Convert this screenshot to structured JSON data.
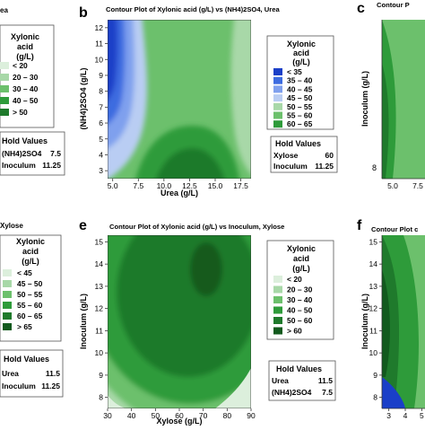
{
  "colors": {
    "lightest": "#dcefdc",
    "light": "#a8d8a8",
    "mid_light": "#6cc06c",
    "mid": "#2e9b3a",
    "dark": "#1f7a2c",
    "darkest": "#125a1e",
    "blue_dark": "#1a3fc8",
    "blue": "#3d6ce0",
    "blue_light": "#7fa0ee",
    "blue_pale": "#b9cdf3"
  },
  "left_top": {
    "title_fragment": "ea",
    "legend_title": [
      "Xylonic",
      "acid",
      "(g/L)"
    ],
    "legend": [
      "< 20",
      "20 – 30",
      "30 – 40",
      "40 – 50",
      "> 50"
    ],
    "hold_title": "Hold Values",
    "hold": [
      {
        "label": "(NH4)2SO4",
        "value": "7.5"
      },
      {
        "label": "Inoculum",
        "value": "11.25"
      }
    ]
  },
  "left_bottom": {
    "title_fragment": "Xylose",
    "legend_title": [
      "Xylonic",
      "acid",
      "(g/L)"
    ],
    "legend": [
      "< 45",
      "45 – 50",
      "50 – 55",
      "55 – 60",
      "60 – 65",
      "> 65"
    ],
    "hold_title": "Hold Values",
    "hold": [
      {
        "label": "Urea",
        "value": "11.5"
      },
      {
        "label": "Inoculum",
        "value": "11.25"
      }
    ]
  },
  "panel_b": {
    "letter": "b",
    "title": "Contour Plot of Xylonic acid (g/L) vs (NH4)2SO4, Urea",
    "xlabel": "Urea (g/L)",
    "ylabel": "(NH4)2SO4 (g/L)",
    "xticks": [
      "5.0",
      "7.5",
      "10.0",
      "12.5",
      "15.0",
      "17.5"
    ],
    "yticks": [
      "3",
      "4",
      "5",
      "6",
      "7",
      "8",
      "9",
      "10",
      "11",
      "12"
    ],
    "legend_title": [
      "Xylonic",
      "acid",
      "(g/L)"
    ],
    "legend": [
      "< 35",
      "35 – 40",
      "40 – 45",
      "45 – 50",
      "50 – 55",
      "55 – 60",
      "60 – 65"
    ],
    "hold_title": "Hold Values",
    "hold": [
      {
        "label": "Xylose",
        "value": "60"
      },
      {
        "label": "Inoculum",
        "value": "11.25"
      }
    ]
  },
  "panel_c": {
    "letter": "c",
    "title_fragment": "Contour P",
    "ylabel": "Inoculum (g/L)",
    "xticks": [
      "5.0",
      "7.5"
    ]
  },
  "panel_e": {
    "letter": "e",
    "title": "Contour Plot of Xylonic acid (g/L) vs Inoculum, Xylose",
    "xlabel": "Xylose (g/L)",
    "ylabel": "Inoculum (g/L)",
    "xticks": [
      "30",
      "40",
      "50",
      "60",
      "70",
      "80",
      "90"
    ],
    "yticks": [
      "8",
      "9",
      "10",
      "11",
      "12",
      "13",
      "14",
      "15"
    ],
    "legend_title": [
      "Xylonic",
      "acid",
      "(g/L)"
    ],
    "legend": [
      "< 20",
      "20 – 30",
      "30 – 40",
      "40 – 50",
      "50 – 60",
      "> 60"
    ],
    "hold_title": "Hold Values",
    "hold": [
      {
        "label": "Urea",
        "value": "11.5"
      },
      {
        "label": "(NH4)2SO4",
        "value": "7.5"
      }
    ]
  },
  "panel_f": {
    "letter": "f",
    "title_fragment": "Contour Plot c",
    "ylabel": "Inoculum (g/L)",
    "yticks": [
      "8",
      "9",
      "10",
      "11",
      "12",
      "13",
      "14",
      "15"
    ],
    "xticks": [
      "3",
      "4",
      "5"
    ]
  },
  "chart_data": [
    {
      "type": "heatmap",
      "title": "Contour Plot of Xylonic acid (g/L) vs (NH4)2SO4, Urea",
      "xlabel": "Urea (g/L)",
      "ylabel": "(NH4)2SO4 (g/L)",
      "xlim": [
        5,
        18.5
      ],
      "ylim": [
        2.5,
        12.5
      ],
      "levels": [
        "< 35",
        "35 – 40",
        "40 – 45",
        "45 – 50",
        "50 – 55",
        "55 – 60",
        "60 – 65"
      ],
      "notes": "Low values (<35) at low Urea & high (NH4)2SO4; maximum 60–65 near Urea 12.5, (NH4)2SO4 3–5"
    },
    {
      "type": "heatmap",
      "title": "Contour Plot of Xylonic acid (g/L) vs Inoculum, Xylose",
      "xlabel": "Xylose (g/L)",
      "ylabel": "Inoculum (g/L)",
      "xlim": [
        30,
        90
      ],
      "ylim": [
        7.5,
        15
      ],
      "levels": [
        "< 20",
        "20 – 30",
        "30 – 40",
        "40 – 50",
        "50 – 60",
        "> 60"
      ],
      "notes": "Maximum > 60 near Xylose 70, Inoculum 13.5"
    }
  ]
}
